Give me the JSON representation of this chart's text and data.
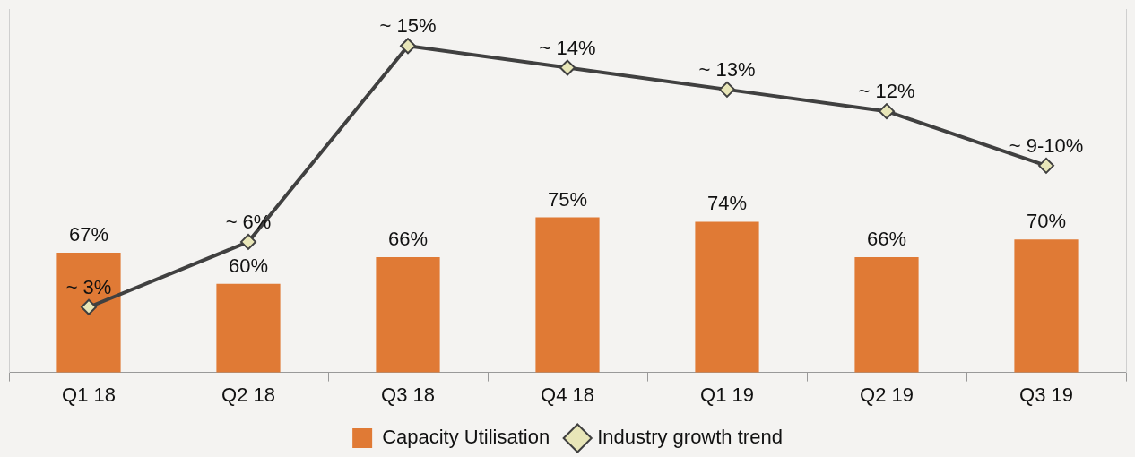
{
  "chart_data": {
    "type": "bar",
    "categories": [
      "Q1 18",
      "Q2 18",
      "Q3 18",
      "Q4 18",
      "Q1 19",
      "Q2 19",
      "Q3 19"
    ],
    "series": [
      {
        "name": "Capacity Utilisation",
        "color": "#e07a35",
        "values": [
          67,
          60,
          66,
          75,
          74,
          66,
          70
        ],
        "value_labels": [
          "67%",
          "60%",
          "66%",
          "75%",
          "74%",
          "66%",
          "70%"
        ]
      },
      {
        "name": "Industry growth trend",
        "type": "line",
        "axis": "y2",
        "color": "#404040",
        "marker": "diamond",
        "values": [
          3,
          6,
          15,
          14,
          13,
          12,
          9.5
        ],
        "value_labels": [
          "~ 3%",
          "~ 6%",
          "~ 15%",
          "~ 14%",
          "~ 13%",
          "~ 12%",
          "~ 9-10%"
        ]
      }
    ],
    "ylim": [
      40,
      122
    ],
    "y2lim": [
      0,
      16.7
    ],
    "tick_labels": "x",
    "grid": false,
    "legend": "bottom"
  }
}
